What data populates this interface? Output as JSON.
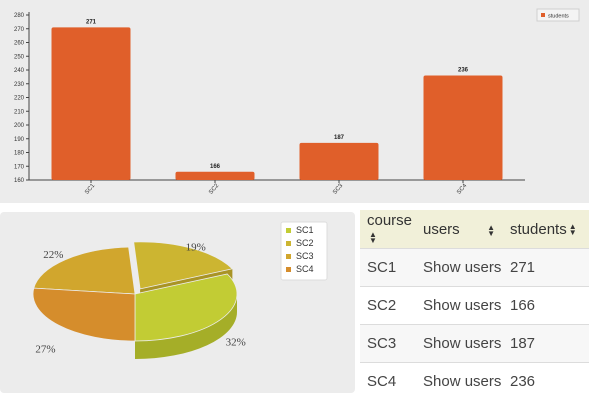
{
  "chart_data": [
    {
      "type": "bar",
      "categories": [
        "SC1",
        "SC2",
        "SC3",
        "SC4"
      ],
      "values": [
        271,
        166,
        187,
        236
      ],
      "series": [
        {
          "name": "students",
          "values": [
            271,
            166,
            187,
            236
          ]
        }
      ],
      "ylim": [
        160,
        280
      ],
      "yticks": [
        160,
        170,
        180,
        190,
        200,
        210,
        220,
        230,
        240,
        250,
        260,
        270,
        280
      ],
      "grid": false,
      "legend": "top-right",
      "color": "#e05f2a"
    },
    {
      "type": "pie",
      "categories": [
        "SC1",
        "SC2",
        "SC3",
        "SC4"
      ],
      "values": [
        32,
        19,
        22,
        27
      ],
      "labels": [
        "32%",
        "19%",
        "22%",
        "27%"
      ],
      "colors": [
        "#c2cc34",
        "#ccb531",
        "#d1a62d",
        "#d58d2c"
      ],
      "legend": "right"
    }
  ],
  "table": {
    "headers": [
      "course",
      "users",
      "students"
    ],
    "rows": [
      {
        "course": "SC1",
        "users": "Show users",
        "students": "271"
      },
      {
        "course": "SC2",
        "users": "Show users",
        "students": "166"
      },
      {
        "course": "SC3",
        "users": "Show users",
        "students": "187"
      },
      {
        "course": "SC4",
        "users": "Show users",
        "students": "236"
      }
    ]
  }
}
